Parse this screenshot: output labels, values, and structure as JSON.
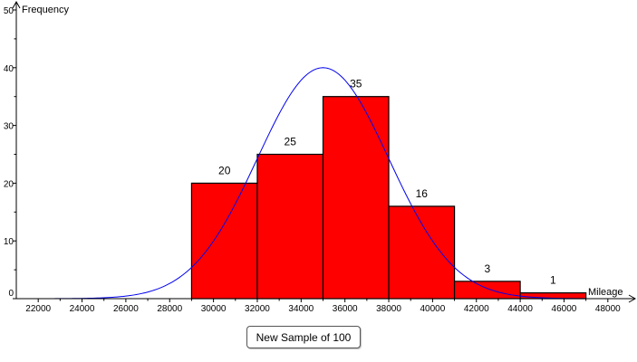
{
  "chart_data": {
    "type": "bar",
    "subtype": "histogram",
    "bins": [
      {
        "start": 29000,
        "end": 32000,
        "value": 20,
        "label": "20"
      },
      {
        "start": 32000,
        "end": 35000,
        "value": 25,
        "label": "25"
      },
      {
        "start": 35000,
        "end": 38000,
        "value": 35,
        "label": "35"
      },
      {
        "start": 38000,
        "end": 41000,
        "value": 16,
        "label": "16"
      },
      {
        "start": 41000,
        "end": 44000,
        "value": 3,
        "label": "3"
      },
      {
        "start": 44000,
        "end": 47000,
        "value": 1,
        "label": "1"
      }
    ],
    "normal_curve": {
      "mean": 35000,
      "peak": 40,
      "sd": 3000,
      "color": "#0000ee"
    },
    "xlabel": "Mileage",
    "ylabel": "Frequency",
    "xlim": [
      21000,
      49000
    ],
    "ylim": [
      0,
      50
    ],
    "x_ticks": [
      "22000",
      "24000",
      "26000",
      "28000",
      "30000",
      "32000",
      "34000",
      "36000",
      "38000",
      "40000",
      "42000",
      "44000",
      "46000",
      "48000"
    ],
    "x_tick_values": [
      22000,
      24000,
      26000,
      28000,
      30000,
      32000,
      34000,
      36000,
      38000,
      40000,
      42000,
      44000,
      46000,
      48000
    ],
    "y_ticks": [
      "0",
      "10",
      "20",
      "30",
      "40",
      "50"
    ],
    "y_tick_values": [
      0,
      10,
      20,
      30,
      40,
      50
    ],
    "bar_color": "#ff0000",
    "bar_edge_color": "#000000"
  },
  "controls": {
    "new_sample_label": "New Sample of 100"
  }
}
